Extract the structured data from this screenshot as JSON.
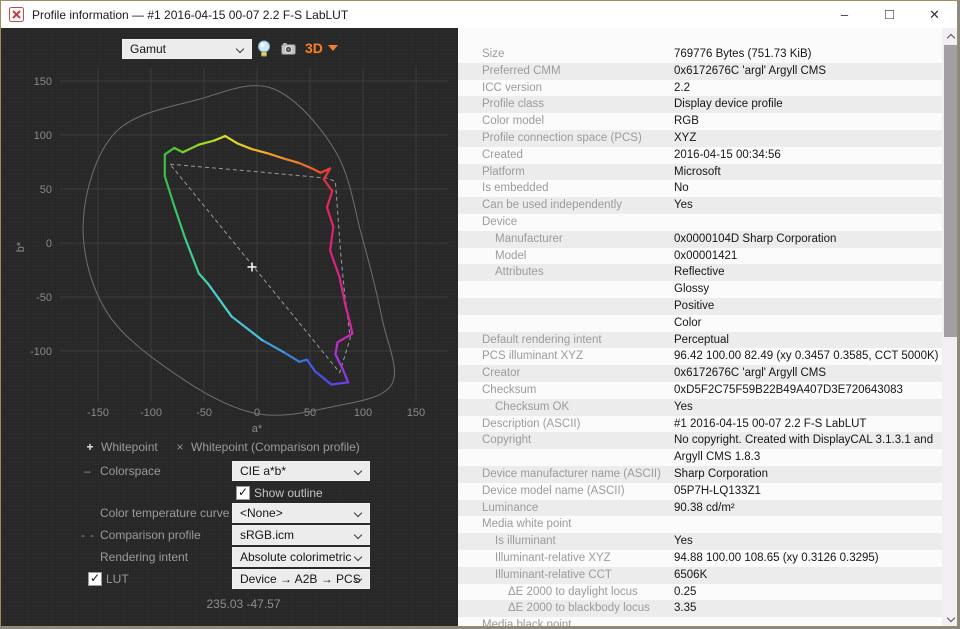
{
  "window": {
    "title": "Profile information — #1 2016-04-15 00-07 2.2 F-S LabLUT",
    "controls": {
      "minimize": "–",
      "maximize": "□",
      "close": "✕"
    }
  },
  "toolbar": {
    "view_value": "Gamut",
    "icons": [
      "lightbulb-icon",
      "camera-icon"
    ],
    "view_3d_label": "3D"
  },
  "legend": {
    "whitepoint_marker": "+",
    "whitepoint_label": "Whitepoint",
    "comparison_marker": "×",
    "comparison_label": "Whitepoint (Comparison profile)"
  },
  "controls": {
    "colorspace": {
      "marker": "–",
      "label": "Colorspace",
      "value": "CIE a*b*"
    },
    "show_outline": {
      "label": "Show outline",
      "checked": true
    },
    "color_temperature_curve": {
      "label": "Color temperature curve",
      "value": "<None>"
    },
    "comparison_profile": {
      "marker": "- -",
      "label": "Comparison profile",
      "value": "sRGB.icm"
    },
    "rendering_intent": {
      "label": "Rendering intent",
      "value": "Absolute colorimetric"
    },
    "lut": {
      "label": "LUT",
      "checked": true,
      "value": "Device → A2B → PCS"
    }
  },
  "status": {
    "coordinates": "235.03 -47.57"
  },
  "properties": {
    "rows": [
      {
        "label": "Size",
        "value": "769776 Bytes (751.73 KiB)",
        "indent": 0
      },
      {
        "label": "Preferred CMM",
        "value": "0x6172676C 'argl' Argyll CMS",
        "indent": 0
      },
      {
        "label": "ICC version",
        "value": "2.2",
        "indent": 0
      },
      {
        "label": "Profile class",
        "value": "Display device profile",
        "indent": 0
      },
      {
        "label": "Color model",
        "value": "RGB",
        "indent": 0
      },
      {
        "label": "Profile connection space (PCS)",
        "value": "XYZ",
        "indent": 0
      },
      {
        "label": "Created",
        "value": "2016-04-15 00:34:56",
        "indent": 0
      },
      {
        "label": "Platform",
        "value": "Microsoft",
        "indent": 0
      },
      {
        "label": "Is embedded",
        "value": "No",
        "indent": 0
      },
      {
        "label": "Can be used independently",
        "value": "Yes",
        "indent": 0
      },
      {
        "label": "Device",
        "value": "",
        "indent": 0
      },
      {
        "label": "Manufacturer",
        "value": "0x0000104D Sharp Corporation",
        "indent": 1
      },
      {
        "label": "Model",
        "value": "0x00001421",
        "indent": 1
      },
      {
        "label": "Attributes",
        "value": "Reflective",
        "indent": 1
      },
      {
        "label": "",
        "value": "Glossy",
        "indent": 1
      },
      {
        "label": "",
        "value": "Positive",
        "indent": 1
      },
      {
        "label": "",
        "value": "Color",
        "indent": 1
      },
      {
        "label": "Default rendering intent",
        "value": "Perceptual",
        "indent": 0
      },
      {
        "label": "PCS illuminant XYZ",
        "value": "96.42 100.00  82.49 (xy 0.3457 0.3585, CCT 5000K)",
        "indent": 0
      },
      {
        "label": "Creator",
        "value": "0x6172676C 'argl' Argyll CMS",
        "indent": 0
      },
      {
        "label": "Checksum",
        "value": "0xD5F2C75F59B22B49A407D3E720643083",
        "indent": 0
      },
      {
        "label": "Checksum OK",
        "value": "Yes",
        "indent": 1
      },
      {
        "label": "Description (ASCII)",
        "value": "#1 2016-04-15 00-07 2.2 F-S LabLUT",
        "indent": 0
      },
      {
        "label": "Copyright",
        "value": "No copyright. Created with DisplayCAL 3.1.3.1 and",
        "indent": 0
      },
      {
        "label": "",
        "value": "Argyll CMS 1.8.3",
        "indent": 0
      },
      {
        "label": "Device manufacturer name (ASCII)",
        "value": "Sharp Corporation",
        "indent": 0
      },
      {
        "label": "Device model name (ASCII)",
        "value": "05P7H-LQ133Z1",
        "indent": 0
      },
      {
        "label": "Luminance",
        "value": "90.38 cd/m²",
        "indent": 0
      },
      {
        "label": "Media white point",
        "value": "",
        "indent": 0
      },
      {
        "label": "Is illuminant",
        "value": "Yes",
        "indent": 1
      },
      {
        "label": "Illuminant-relative XYZ",
        "value": "94.88 100.00 108.65 (xy 0.3126 0.3295)",
        "indent": 1
      },
      {
        "label": "Illuminant-relative CCT",
        "value": "6506K",
        "indent": 1
      },
      {
        "label": "ΔE 2000 to daylight locus",
        "value": "0.25",
        "indent": 2
      },
      {
        "label": "ΔE 2000 to blackbody locus",
        "value": "3.35",
        "indent": 2
      },
      {
        "label": "Media black point",
        "value": "",
        "indent": 0
      }
    ]
  },
  "chart_data": {
    "type": "scatter",
    "title": "Gamut",
    "xlabel": "a*",
    "ylabel": "b*",
    "x_ticks": [
      -150,
      -100,
      -50,
      0,
      50,
      100,
      150
    ],
    "y_ticks": [
      150,
      100,
      50,
      0,
      -50,
      -100
    ],
    "xlim": [
      -230,
      200
    ],
    "ylim": [
      -185,
      165
    ],
    "grid": true,
    "grid_color": "#3c3c3c",
    "axis_text_color": "#8a8a8a",
    "whitepoint": {
      "a": -4.7,
      "b": -22.2,
      "marker": "+",
      "color": "#f0f0f0"
    },
    "gamut_outline": {
      "name": "profile gamut (colored by hue)",
      "points": [
        [
          -87,
          82
        ],
        [
          -78,
          88
        ],
        [
          -70,
          84
        ],
        [
          -55,
          91
        ],
        [
          -40,
          95
        ],
        [
          -30,
          99
        ],
        [
          -18,
          92
        ],
        [
          -5,
          87
        ],
        [
          10,
          83
        ],
        [
          26,
          78
        ],
        [
          40,
          74
        ],
        [
          52,
          69
        ],
        [
          60,
          65
        ],
        [
          69,
          69
        ],
        [
          63,
          59
        ],
        [
          71,
          48
        ],
        [
          66,
          33
        ],
        [
          72,
          15
        ],
        [
          69,
          -7
        ],
        [
          78,
          -32
        ],
        [
          83,
          -56
        ],
        [
          88,
          -75
        ],
        [
          90,
          -84
        ],
        [
          76,
          -92
        ],
        [
          74,
          -103
        ],
        [
          81,
          -117
        ],
        [
          86,
          -129
        ],
        [
          70,
          -131
        ],
        [
          55,
          -119
        ],
        [
          47,
          -108
        ],
        [
          40,
          -110
        ],
        [
          25,
          -101
        ],
        [
          5,
          -90
        ],
        [
          -24,
          -68
        ],
        [
          -46,
          -38
        ],
        [
          -55,
          -28
        ],
        [
          -68,
          5
        ],
        [
          -79,
          37
        ],
        [
          -87,
          62
        ]
      ],
      "colors": [
        "#45bf40",
        "#63c92f",
        "#84d22a",
        "#a6da28",
        "#c6df28",
        "#dedc29",
        "#e9c92a",
        "#efb32b",
        "#f29b2c",
        "#f2832d",
        "#f06b2e",
        "#ee5530",
        "#eb4434",
        "#e8383c",
        "#e52f48",
        "#e22a55",
        "#e02663",
        "#dd2471",
        "#da247f",
        "#d7248e",
        "#d4259c",
        "#d027ab",
        "#ca2abb",
        "#bb2fce",
        "#a335dc",
        "#853ce7",
        "#6444ec",
        "#4c4ded",
        "#3f5fe9",
        "#3a71e2",
        "#3b81da",
        "#40a0da",
        "#4cc0da",
        "#4bcfc8",
        "#44d1a9",
        "#3ecd8a",
        "#39c569",
        "#3abd4f",
        "#40bf45"
      ]
    },
    "comparison_outline": {
      "name": "sRGB.icm gamut",
      "style": "dashed",
      "color": "#9a9a9a",
      "points": [
        [
          -82,
          73
        ],
        [
          0,
          66
        ],
        [
          66,
          60
        ],
        [
          74,
          57
        ],
        [
          79,
          -10
        ],
        [
          83,
          -50
        ],
        [
          88,
          -88
        ],
        [
          78,
          -120
        ]
      ]
    },
    "lab_space_outline": {
      "name": "CIE Lab space outline",
      "color": "#6f6f6f",
      "points": [
        [
          15,
          143
        ],
        [
          74,
          85
        ],
        [
          99,
          6
        ],
        [
          118,
          -70
        ],
        [
          127,
          -131
        ],
        [
          69,
          -152
        ],
        [
          0,
          -158
        ],
        [
          -70,
          -126
        ],
        [
          -141,
          -65
        ],
        [
          -164,
          19
        ],
        [
          -134,
          102
        ],
        [
          -55,
          133
        ]
      ]
    }
  }
}
